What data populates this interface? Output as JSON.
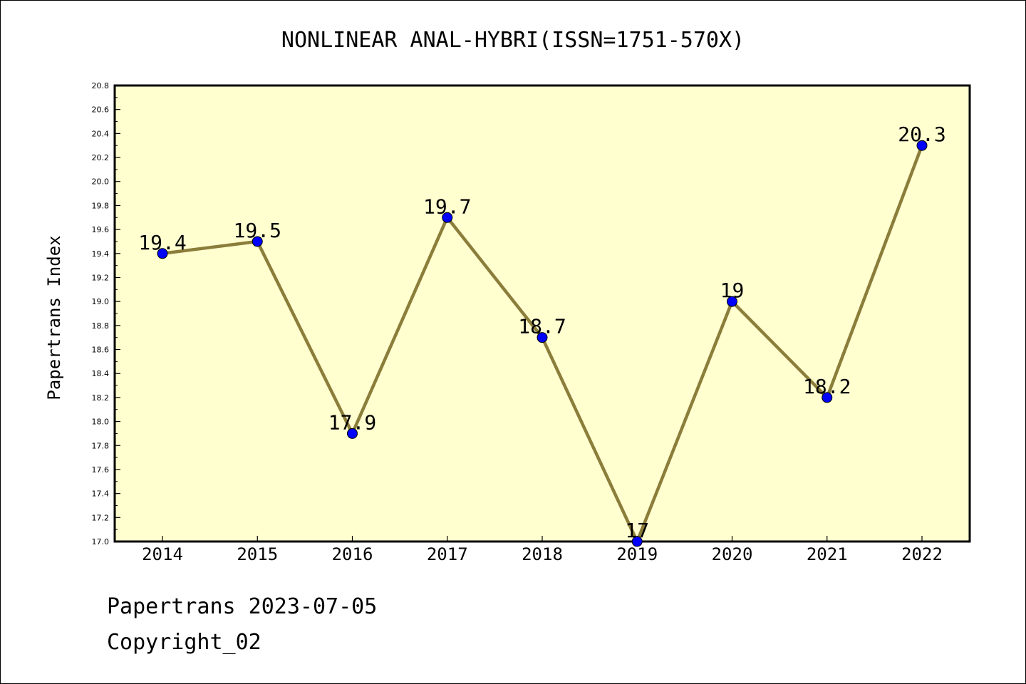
{
  "chart_data": {
    "type": "line",
    "title": "NONLINEAR ANAL-HYBRI(ISSN=1751-570X)",
    "xlabel": "",
    "ylabel": "Papertrans Index",
    "categories": [
      "2014",
      "2015",
      "2016",
      "2017",
      "2018",
      "2019",
      "2020",
      "2021",
      "2022"
    ],
    "series": [
      {
        "values": [
          19.4,
          19.5,
          17.9,
          19.7,
          18.7,
          17.0,
          19.0,
          18.2,
          20.3
        ],
        "data_labels": [
          "19.4",
          "19.5",
          "17.9",
          "19.7",
          "18.7",
          "17",
          "19",
          "18.2",
          "20.3"
        ]
      }
    ],
    "ylim": [
      17.0,
      20.8
    ],
    "yticks": [
      "17.0",
      "17.2",
      "17.4",
      "17.6",
      "17.8",
      "18.0",
      "18.2",
      "18.4",
      "18.6",
      "18.8",
      "19.0",
      "19.2",
      "19.4",
      "19.6",
      "19.8",
      "20.0",
      "20.2",
      "20.4",
      "20.6",
      "20.8"
    ],
    "grid": false,
    "legend": "none",
    "colors": {
      "plot_background": "#ffffd0",
      "line": "#8b7d3a",
      "marker": "#0000ff"
    }
  },
  "footer": {
    "line1": "Papertrans 2023-07-05",
    "line2": "Copyright_02"
  }
}
